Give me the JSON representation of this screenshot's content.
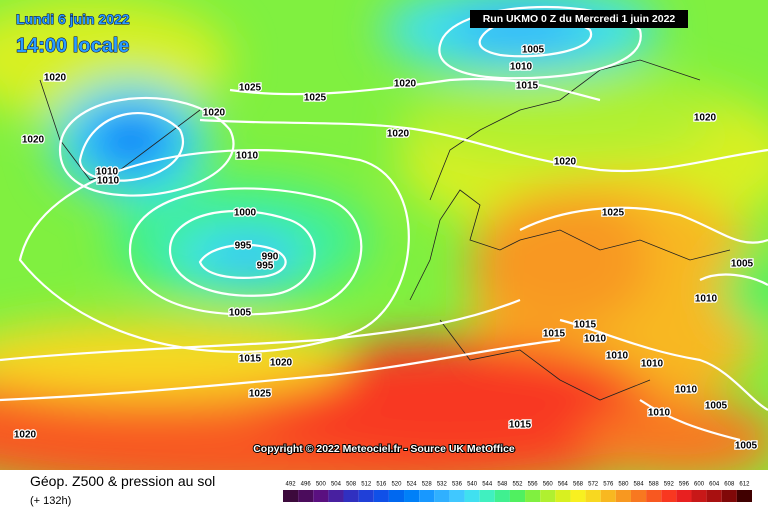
{
  "header": {
    "date": "Lundi 6 juin 2022",
    "time": "14:00 locale",
    "run": "Run UKMO 0 Z du Mercredi 1 juin 2022"
  },
  "isobar_labels": [
    1020,
    1025,
    1025,
    1020,
    1005,
    1010,
    1015,
    1020,
    1020,
    1010,
    1020,
    1020,
    1010,
    1010,
    1020,
    1000,
    1025,
    995,
    990,
    995,
    1005,
    1010,
    1005,
    1015,
    1015,
    1010,
    1010,
    1010,
    1015,
    1020,
    1025,
    1010,
    1005,
    1010,
    1015,
    1020,
    1005
  ],
  "footer": {
    "copyright": "Copyright © 2022 Meteociel.fr - Source UK MetOffice",
    "title": "Géop. Z500 & pression au sol",
    "lead": "(+ 132h)"
  },
  "legend": {
    "ticks": [
      492,
      496,
      500,
      504,
      508,
      512,
      516,
      520,
      524,
      528,
      532,
      536,
      540,
      544,
      548,
      552,
      556,
      560,
      564,
      568,
      572,
      576,
      580,
      584,
      588,
      592,
      596,
      600,
      604,
      608,
      612
    ],
    "colors": [
      "#3c0a3c",
      "#4b0c5c",
      "#5a1080",
      "#4820a0",
      "#3030c0",
      "#2040d8",
      "#1050e8",
      "#0068f0",
      "#0080f8",
      "#1898ff",
      "#30b0ff",
      "#40c8ff",
      "#40e0f0",
      "#40f0c0",
      "#40f090",
      "#50f060",
      "#80f040",
      "#b0f030",
      "#d8f020",
      "#f8f020",
      "#f8d820",
      "#f8b820",
      "#f89820",
      "#f87820",
      "#f85820",
      "#f83820",
      "#e82020",
      "#c81818",
      "#a81010",
      "#800808",
      "#400000"
    ]
  }
}
